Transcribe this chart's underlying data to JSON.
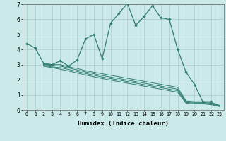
{
  "background_color": "#cce9e9",
  "grid_color": "#aacccc",
  "line_color": "#2e7d6e",
  "xlabel": "Humidex (Indice chaleur)",
  "xlim": [
    -0.5,
    23.5
  ],
  "ylim": [
    0,
    7
  ],
  "xticks": [
    0,
    1,
    2,
    3,
    4,
    5,
    6,
    7,
    8,
    9,
    10,
    11,
    12,
    13,
    14,
    15,
    16,
    17,
    18,
    19,
    20,
    21,
    22,
    23
  ],
  "yticks": [
    0,
    1,
    2,
    3,
    4,
    5,
    6,
    7
  ],
  "series1_x": [
    0,
    1,
    2,
    3,
    4,
    5,
    6,
    7,
    8,
    9,
    10,
    11,
    12,
    13,
    14,
    15,
    16,
    17,
    18,
    19,
    20,
    21,
    22,
    23
  ],
  "series1_y": [
    4.4,
    4.1,
    3.1,
    3.0,
    3.25,
    2.9,
    3.3,
    4.7,
    5.0,
    3.4,
    5.75,
    6.4,
    7.05,
    5.6,
    6.2,
    6.9,
    6.1,
    6.0,
    4.0,
    2.5,
    1.7,
    0.55,
    0.55,
    null
  ],
  "series2_x": [
    2,
    3,
    4,
    5,
    6,
    7,
    8,
    9,
    10,
    11,
    12,
    13,
    14,
    15,
    16,
    17,
    18,
    19,
    20,
    21,
    22,
    23
  ],
  "series2_y": [
    3.0,
    3.0,
    3.0,
    2.85,
    2.75,
    2.6,
    2.5,
    2.4,
    2.3,
    2.2,
    2.1,
    2.0,
    1.9,
    1.8,
    1.7,
    1.6,
    1.5,
    0.6,
    0.55,
    0.55,
    0.5,
    0.3
  ],
  "series3_x": [
    2,
    3,
    4,
    5,
    6,
    7,
    8,
    9,
    10,
    11,
    12,
    13,
    14,
    15,
    16,
    17,
    18,
    19,
    20,
    21,
    22,
    23
  ],
  "series3_y": [
    3.0,
    2.95,
    2.9,
    2.78,
    2.65,
    2.52,
    2.4,
    2.28,
    2.18,
    2.08,
    1.98,
    1.88,
    1.78,
    1.68,
    1.58,
    1.48,
    1.38,
    0.55,
    0.5,
    0.5,
    0.45,
    0.28
  ],
  "series4_x": [
    2,
    3,
    4,
    5,
    6,
    7,
    8,
    9,
    10,
    11,
    12,
    13,
    14,
    15,
    16,
    17,
    18,
    19,
    20,
    21,
    22,
    23
  ],
  "series4_y": [
    2.95,
    2.85,
    2.8,
    2.68,
    2.55,
    2.42,
    2.3,
    2.18,
    2.08,
    1.98,
    1.88,
    1.78,
    1.68,
    1.58,
    1.48,
    1.38,
    1.28,
    0.5,
    0.45,
    0.45,
    0.4,
    0.25
  ],
  "series5_x": [
    2,
    3,
    4,
    5,
    6,
    7,
    8,
    9,
    10,
    11,
    12,
    13,
    14,
    15,
    16,
    17,
    18,
    19,
    20,
    21,
    22,
    23
  ],
  "series5_y": [
    2.9,
    2.8,
    2.7,
    2.58,
    2.45,
    2.32,
    2.2,
    2.08,
    1.98,
    1.88,
    1.78,
    1.68,
    1.58,
    1.48,
    1.38,
    1.28,
    1.18,
    0.45,
    0.4,
    0.4,
    0.35,
    0.22
  ]
}
